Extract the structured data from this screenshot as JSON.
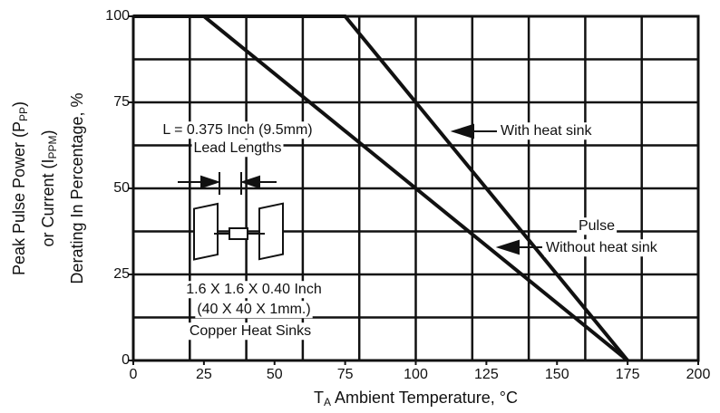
{
  "chart_data": {
    "type": "line",
    "ylabel": [
      [
        "Peak Pulse Power (P",
        "PP",
        ")"
      ],
      [
        "or Current (I",
        "PPM",
        ")"
      ],
      [
        "Derating In Percentage, %"
      ]
    ],
    "xlabel": [
      "T",
      "A",
      " Ambient Temperature, °C"
    ],
    "series": [
      {
        "name": "With heat sink",
        "color": "#111111",
        "x": [
          0,
          75,
          175
        ],
        "values": [
          100,
          100,
          0
        ]
      },
      {
        "name": "Without heat sink",
        "color": "#111111",
        "x": [
          0,
          25,
          175
        ],
        "values": [
          100,
          100,
          0
        ]
      }
    ],
    "annotations": [
      "L = 0.375 Inch (9.5mm)",
      "Lead Lengths",
      "1.6 X 1.6 X 0.40 Inch",
      "(40 X 40 X 1mm.)",
      "Copper Heat Sinks",
      "Pulse"
    ],
    "xlim": [
      0,
      200
    ],
    "ylim": [
      0,
      100
    ],
    "xticks": [
      0,
      25,
      50,
      75,
      100,
      125,
      150,
      175,
      200
    ],
    "yticks": [
      0,
      25,
      50,
      75,
      100
    ],
    "xgrid": [
      20,
      40,
      60,
      80,
      100,
      120,
      140,
      160,
      180
    ],
    "ygrid": [
      12.5,
      25,
      37.5,
      50,
      62.5,
      75,
      87.5
    ],
    "grid": true
  }
}
